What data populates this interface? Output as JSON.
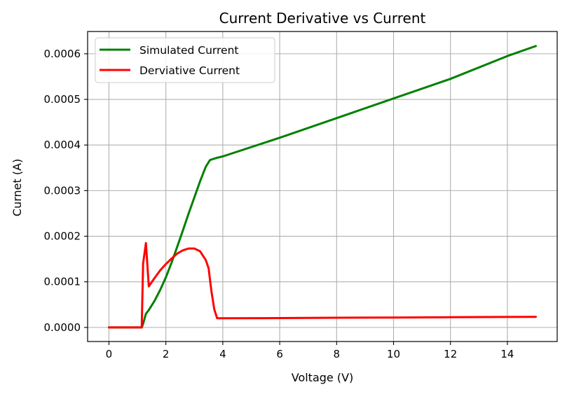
{
  "chart_data": {
    "type": "line",
    "title": "Current Derivative vs Current",
    "xlabel": "Voltage (V)",
    "ylabel": "Curnet (A)",
    "xlim": [
      -0.75,
      15.75
    ],
    "ylim": [
      -3.09e-05,
      0.0006489
    ],
    "xticks": [
      0,
      2,
      4,
      6,
      8,
      10,
      12,
      14
    ],
    "xtick_labels": [
      "0",
      "2",
      "4",
      "6",
      "8",
      "10",
      "12",
      "14"
    ],
    "yticks": [
      0,
      0.0001,
      0.0002,
      0.0003,
      0.0004,
      0.0005,
      0.0006
    ],
    "ytick_labels": [
      "0.0000",
      "0.0001",
      "0.0002",
      "0.0003",
      "0.0004",
      "0.0005",
      "0.0006"
    ],
    "grid": true,
    "legend_position": "top-left",
    "series": [
      {
        "name": "Simulated Current",
        "color": "#008000",
        "x": [
          0,
          0.5,
          1.0,
          1.15,
          1.2,
          1.3,
          1.4,
          1.6,
          1.8,
          2.0,
          2.2,
          2.4,
          2.6,
          2.8,
          3.0,
          3.2,
          3.4,
          3.55,
          3.7,
          3.8,
          4,
          6,
          8,
          10,
          12,
          14,
          15
        ],
        "y": [
          0,
          0,
          0,
          0,
          8e-06,
          3e-05,
          3.8e-05,
          5.8e-05,
          8.2e-05,
          0.00011,
          0.000142,
          0.000177,
          0.000213,
          0.00025,
          0.000285,
          0.00032,
          0.000352,
          0.000367,
          0.00037,
          0.000372,
          0.000375,
          0.000416,
          0.000459,
          0.000502,
          0.000545,
          0.000595,
          0.000617
        ]
      },
      {
        "name": "Derviative Current",
        "color": "#ff0000",
        "x": [
          0,
          0.5,
          1.0,
          1.15,
          1.2,
          1.3,
          1.4,
          1.6,
          1.8,
          2.0,
          2.2,
          2.4,
          2.6,
          2.8,
          3.0,
          3.2,
          3.4,
          3.5,
          3.6,
          3.7,
          3.8,
          4,
          6,
          8,
          10,
          12,
          14,
          15
        ],
        "y": [
          0,
          0,
          0,
          0,
          0.00014,
          0.000185,
          9e-05,
          0.000108,
          0.000125,
          0.000139,
          0.000151,
          0.000162,
          0.000169,
          0.000173,
          0.000173,
          0.000167,
          0.000148,
          0.00013,
          8e-05,
          4e-05,
          2e-05,
          2e-05,
          2.05e-05,
          2.12e-05,
          2.18e-05,
          2.24e-05,
          2.3e-05,
          2.32e-05
        ]
      }
    ]
  }
}
